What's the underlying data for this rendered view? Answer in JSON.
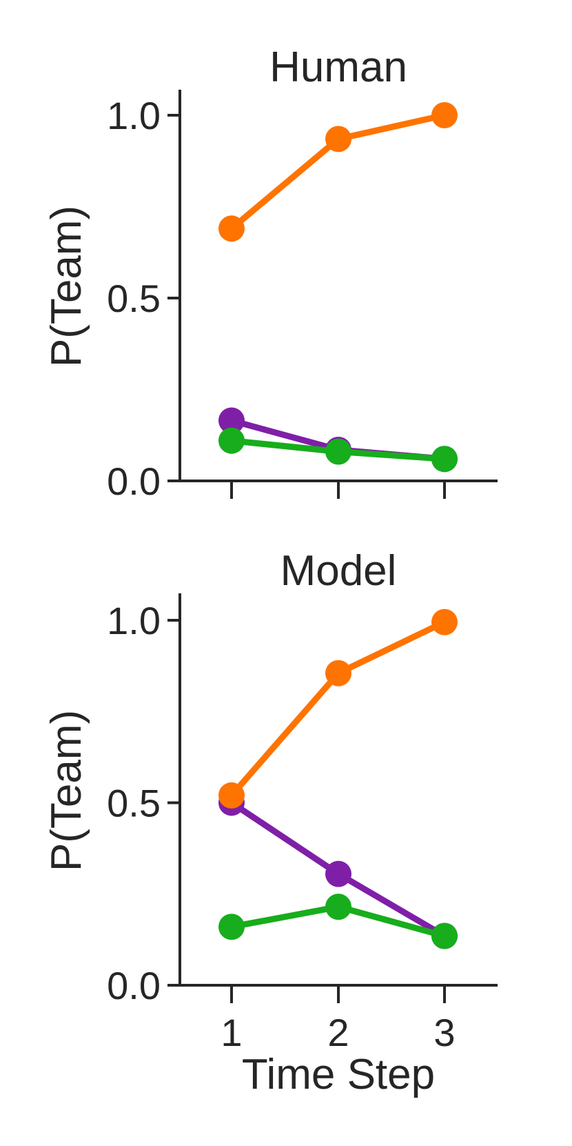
{
  "chart_data": [
    {
      "type": "line",
      "title": "Human",
      "xlabel": "",
      "ylabel": "P(Team)",
      "x": [
        1,
        2,
        3
      ],
      "xticks": [
        "1",
        "2",
        "3"
      ],
      "show_x_tick_labels": false,
      "yticks": [
        "0.0",
        "0.5",
        "1.0"
      ],
      "ylim": [
        0.0,
        1.0
      ],
      "grid": false,
      "series": [
        {
          "color": "#7f1fa8",
          "values": [
            0.165,
            0.085,
            0.06
          ]
        },
        {
          "color": "#ff7300",
          "values": [
            0.69,
            0.935,
            1.0
          ]
        },
        {
          "color": "#17ad1c",
          "values": [
            0.11,
            0.08,
            0.06
          ]
        }
      ]
    },
    {
      "type": "line",
      "title": "Model",
      "xlabel": "Time Step",
      "ylabel": "P(Team)",
      "x": [
        1,
        2,
        3
      ],
      "xticks": [
        "1",
        "2",
        "3"
      ],
      "show_x_tick_labels": true,
      "yticks": [
        "0.0",
        "0.5",
        "1.0"
      ],
      "ylim": [
        0.0,
        1.0
      ],
      "grid": false,
      "series": [
        {
          "color": "#7f1fa8",
          "values": [
            0.5,
            0.305,
            0.135
          ]
        },
        {
          "color": "#ff7300",
          "values": [
            0.52,
            0.855,
            0.995
          ]
        },
        {
          "color": "#17ad1c",
          "values": [
            0.16,
            0.215,
            0.135
          ]
        }
      ]
    }
  ]
}
